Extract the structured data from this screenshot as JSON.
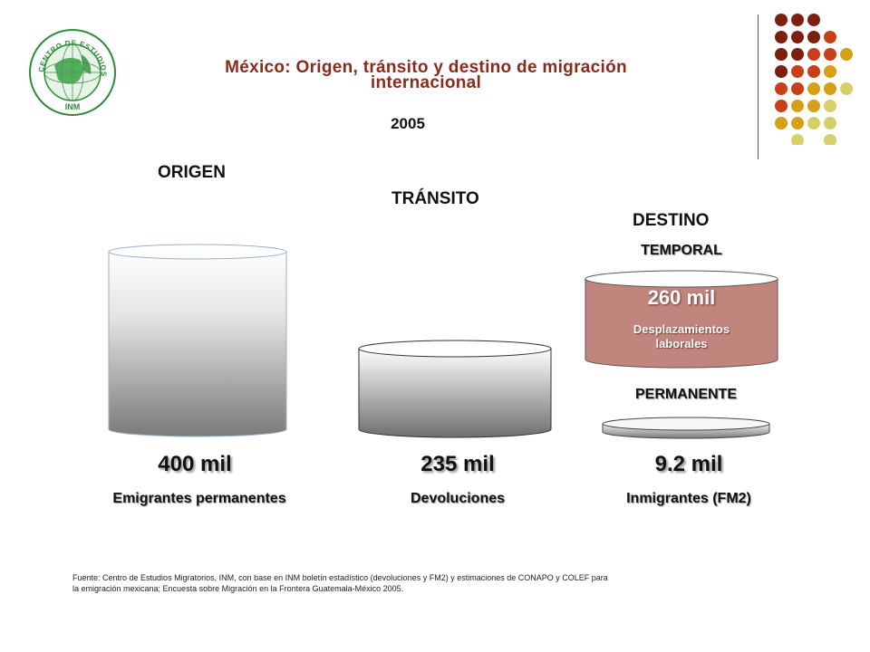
{
  "header": {
    "title": "México: Origen, tránsito y destino de migración internacional",
    "year": "2005",
    "logo_text": "CENTRO DE ESTUDIOS MIGRATORIOS",
    "logo_inm": "INM"
  },
  "sections": {
    "origen": "ORIGEN",
    "transito": "TRÁNSITO",
    "destino": "DESTINO"
  },
  "origen": {
    "value": "400 mil",
    "label": "Emigrantes permanentes"
  },
  "transito": {
    "value": "235 mil",
    "label": "Devoluciones"
  },
  "destino": {
    "temporal_tag": "TEMPORAL",
    "temporal_value": "260 mil",
    "temporal_label": "Desplazamientos laborales",
    "permanente_tag": "PERMANENTE",
    "permanente_value": "9.2 mil",
    "permanente_label": "Inmigrantes (FM2)"
  },
  "footer": {
    "source": "Fuente: Centro de Estudios Migratorios, INM, con base en INM boletín estadístico (devoluciones y FM2) y estimaciones de CONAPO y COLEF para la emigración mexicana; Encuesta sobre Migración en la Frontera Guatemala-México 2005."
  },
  "colors": {
    "title": "#8b2a1a",
    "temporal_cylinder": "#c0857d",
    "dot_dark": "#7b1f0f",
    "dot_red": "#c8401a",
    "dot_gold": "#d4a017",
    "dot_light": "#d6cf6a"
  }
}
